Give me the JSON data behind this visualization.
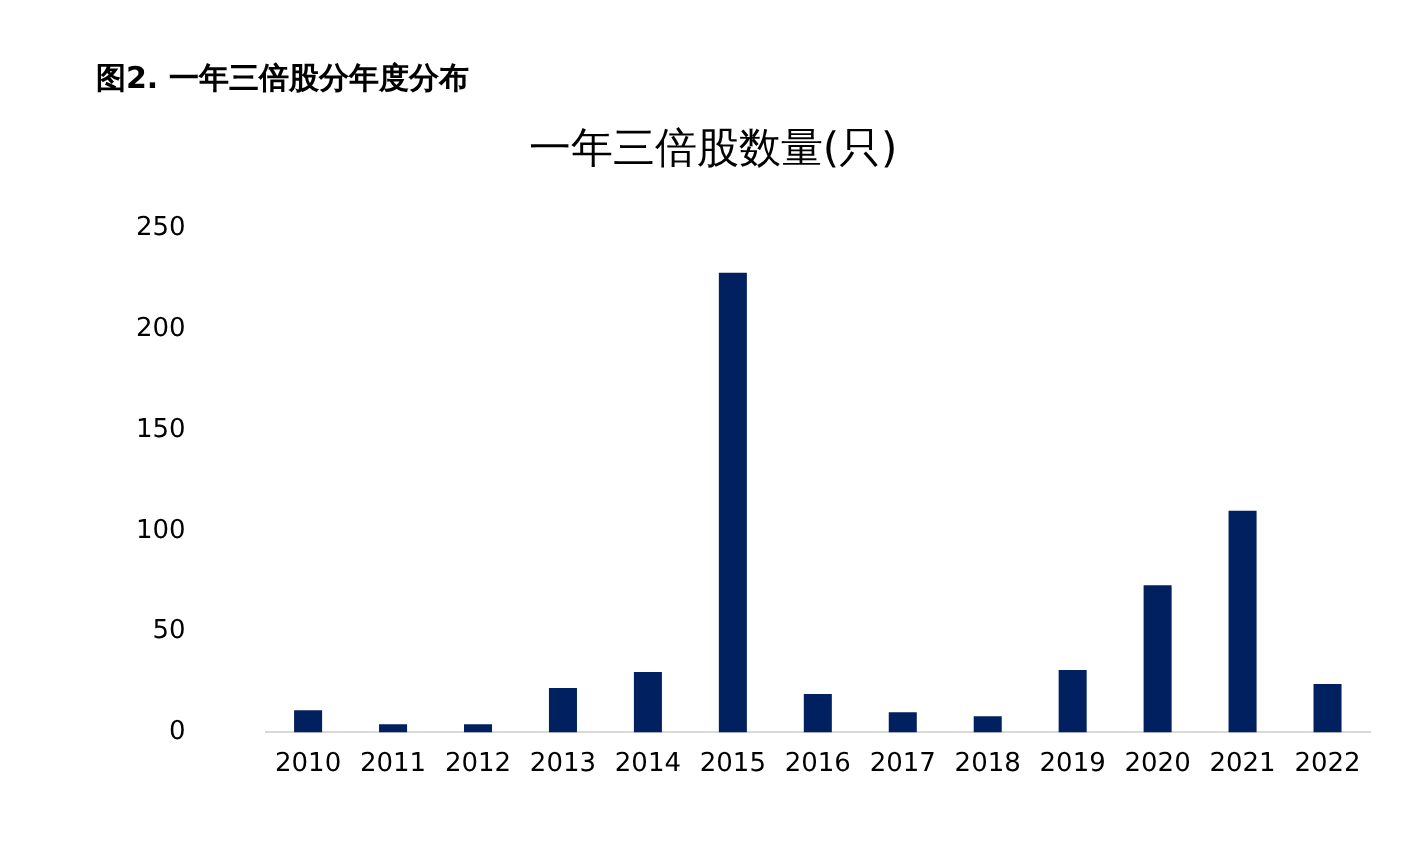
{
  "chart_data": {
    "type": "bar",
    "title": "图2. 一年三倍股分年度分布",
    "subtitle": "一年三倍股数量(只)",
    "categories": [
      "2010",
      "2011",
      "2012",
      "2013",
      "2014",
      "2015",
      "2016",
      "2017",
      "2018",
      "2019",
      "2020",
      "2021",
      "2022"
    ],
    "values": [
      11,
      4,
      4,
      22,
      30,
      228,
      19,
      10,
      8,
      31,
      73,
      110,
      24
    ],
    "color": "#002060",
    "ylim": [
      0,
      250
    ],
    "yticks": [
      0,
      50,
      100,
      150,
      200,
      250
    ],
    "grid": false,
    "legend": false
  }
}
